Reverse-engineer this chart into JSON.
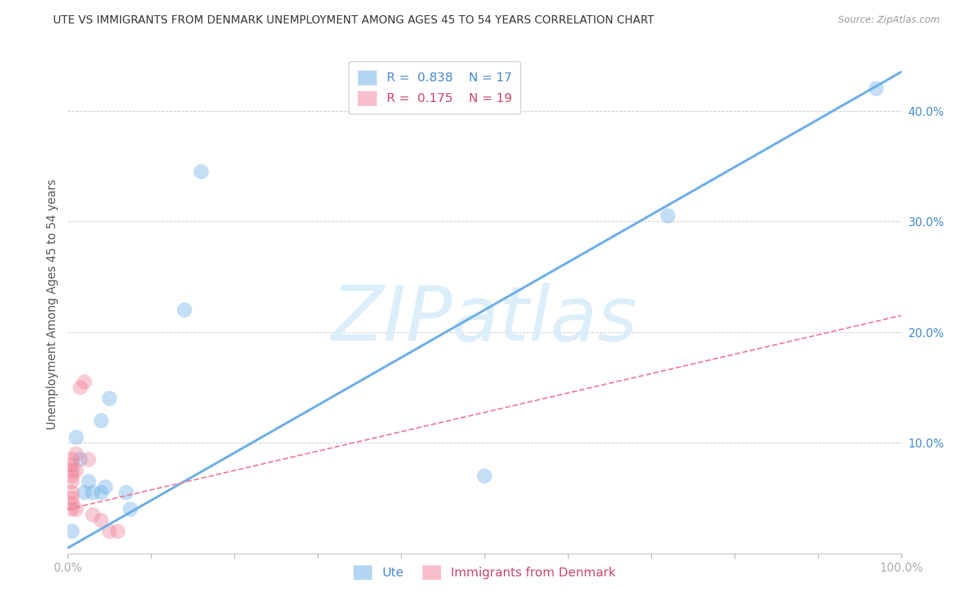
{
  "title": "UTE VS IMMIGRANTS FROM DENMARK UNEMPLOYMENT AMONG AGES 45 TO 54 YEARS CORRELATION CHART",
  "source": "Source: ZipAtlas.com",
  "ylabel": "Unemployment Among Ages 45 to 54 years",
  "xlim": [
    0,
    1.0
  ],
  "ylim": [
    0,
    0.45
  ],
  "legend_entries": [
    {
      "label": "R =  0.838    N = 17",
      "color": "#a8c8f0"
    },
    {
      "label": "R =  0.175    N = 19",
      "color": "#f0a8b8"
    }
  ],
  "ute_scatter_x": [
    0.005,
    0.01,
    0.015,
    0.02,
    0.025,
    0.03,
    0.04,
    0.04,
    0.045,
    0.05,
    0.07,
    0.075,
    0.14,
    0.16,
    0.5,
    0.72,
    0.97
  ],
  "ute_scatter_y": [
    0.02,
    0.105,
    0.085,
    0.055,
    0.065,
    0.055,
    0.12,
    0.055,
    0.06,
    0.14,
    0.055,
    0.04,
    0.22,
    0.345,
    0.07,
    0.305,
    0.42
  ],
  "denmark_scatter_x": [
    0.005,
    0.005,
    0.005,
    0.005,
    0.005,
    0.005,
    0.005,
    0.005,
    0.005,
    0.01,
    0.01,
    0.01,
    0.015,
    0.02,
    0.025,
    0.03,
    0.04,
    0.05,
    0.06
  ],
  "denmark_scatter_y": [
    0.04,
    0.045,
    0.05,
    0.055,
    0.065,
    0.07,
    0.075,
    0.08,
    0.085,
    0.04,
    0.075,
    0.09,
    0.15,
    0.155,
    0.085,
    0.035,
    0.03,
    0.02,
    0.02
  ],
  "ute_line_x": [
    0.0,
    1.0
  ],
  "ute_line_y": [
    0.005,
    0.435
  ],
  "denmark_line_x0": 0.0,
  "denmark_line_x1": 1.0,
  "denmark_line_y0": 0.04,
  "denmark_line_y1": 0.215,
  "bg_color": "#ffffff",
  "grid_color": "#cccccc",
  "ute_color": "#6aaee8",
  "denmark_color": "#f08098",
  "watermark": "ZIPatlas",
  "watermark_color": "#dceefa",
  "bottom_legend_ute": "Ute",
  "bottom_legend_denmark": "Immigrants from Denmark"
}
